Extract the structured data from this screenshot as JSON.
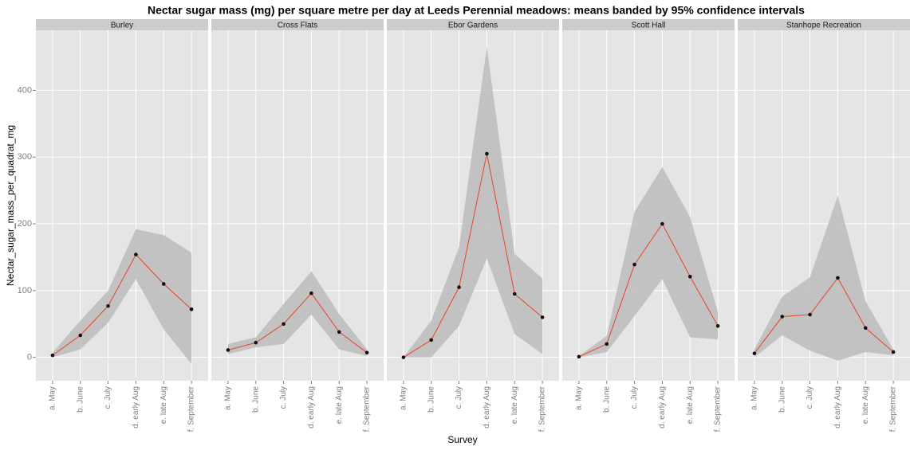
{
  "chart_data": {
    "type": "line",
    "title": "Nectar sugar mass (mg) per square metre per day at Leeds Perennial meadows:  means banded by 95% confidence intervals",
    "x_label": "Survey",
    "y_label": "Nectar_sugar_mass_per_quadrat_mg",
    "categories": [
      "a. May",
      "b. June",
      "c. July",
      "d. early Aug",
      "e. late Aug",
      "f. September"
    ],
    "ylim": [
      -35,
      490
    ],
    "yticks": [
      0,
      100,
      200,
      300,
      400
    ],
    "grid": true,
    "line_color": "#e8432a",
    "point_color": "#111111",
    "band_color": "#bcbcbc",
    "facets": [
      {
        "name": "Burley",
        "values": [
          3,
          33,
          77,
          154,
          110,
          72
        ],
        "lower": [
          0,
          12,
          52,
          117,
          42,
          -10
        ],
        "upper": [
          7,
          55,
          100,
          192,
          183,
          157
        ]
      },
      {
        "name": "Cross Flats",
        "values": [
          11,
          22,
          50,
          96,
          38,
          7
        ],
        "lower": [
          5,
          15,
          20,
          64,
          12,
          2
        ],
        "upper": [
          20,
          30,
          80,
          129,
          65,
          12
        ]
      },
      {
        "name": "Ebor Gardens",
        "values": [
          0,
          26,
          105,
          305,
          95,
          60
        ],
        "lower": [
          0,
          0,
          47,
          148,
          35,
          5
        ],
        "upper": [
          0,
          55,
          165,
          465,
          155,
          118
        ]
      },
      {
        "name": "Scott Hall",
        "values": [
          1,
          20,
          139,
          200,
          121,
          47
        ],
        "lower": [
          0,
          8,
          62,
          117,
          30,
          27
        ],
        "upper": [
          2,
          32,
          218,
          285,
          210,
          68
        ]
      },
      {
        "name": "Stanhope Recreation",
        "values": [
          6,
          61,
          64,
          119,
          44,
          8
        ],
        "lower": [
          0,
          33,
          10,
          -5,
          8,
          3
        ],
        "upper": [
          12,
          91,
          120,
          242,
          84,
          12
        ]
      }
    ]
  }
}
